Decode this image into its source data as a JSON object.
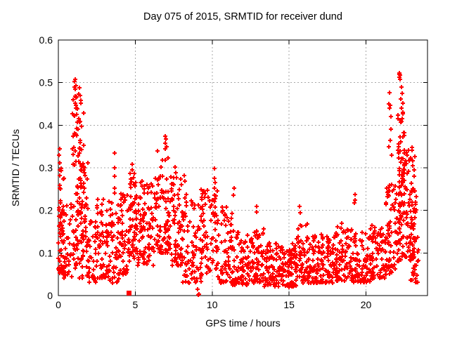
{
  "chart_data": {
    "type": "scatter",
    "title": "Day 075 of 2015, SRMTID for receiver dund",
    "xlabel": "GPS time / hours",
    "ylabel": "SRMTID / TECUs",
    "xlim": [
      0,
      24
    ],
    "ylim": [
      0,
      0.6
    ],
    "xticks": [
      {
        "v": 0,
        "label": "0"
      },
      {
        "v": 5,
        "label": "5"
      },
      {
        "v": 10,
        "label": "10"
      },
      {
        "v": 15,
        "label": "15"
      },
      {
        "v": 20,
        "label": "20"
      }
    ],
    "yticks": [
      {
        "v": 0.0,
        "label": "0"
      },
      {
        "v": 0.1,
        "label": "0.1"
      },
      {
        "v": 0.2,
        "label": "0.2"
      },
      {
        "v": 0.3,
        "label": "0.3"
      },
      {
        "v": 0.4,
        "label": "0.4"
      },
      {
        "v": 0.5,
        "label": "0.5"
      },
      {
        "v": 0.6,
        "label": "0.6"
      }
    ],
    "grid": true,
    "legend": "none",
    "marker": "+",
    "marker_color": "#ff0000",
    "marker_size_px": 7,
    "grid_color": "#a8a8a8",
    "border_color": "#000000",
    "background": "#ffffff",
    "seed": 75,
    "clusters": [
      [
        0.0,
        0.35,
        0.05,
        0.3,
        55,
        1.5
      ],
      [
        0.3,
        0.92,
        0.04,
        0.22,
        40,
        1.3
      ],
      [
        0.92,
        1.28,
        0.26,
        0.47,
        24,
        1.0
      ],
      [
        0.92,
        1.3,
        0.05,
        0.26,
        32,
        1.2
      ],
      [
        1.3,
        1.75,
        0.25,
        0.44,
        22,
        1.2
      ],
      [
        1.3,
        1.95,
        0.04,
        0.32,
        60,
        1.2
      ],
      [
        1.95,
        2.45,
        0.03,
        0.18,
        35,
        1.3
      ],
      [
        2.45,
        3.35,
        0.04,
        0.23,
        70,
        1.4
      ],
      [
        3.35,
        3.95,
        0.03,
        0.22,
        45,
        1.4
      ],
      [
        3.95,
        4.6,
        0.05,
        0.25,
        55,
        1.4
      ],
      [
        4.6,
        5.1,
        0.08,
        0.29,
        55,
        1.3
      ],
      [
        5.1,
        6.3,
        0.07,
        0.27,
        90,
        1.5
      ],
      [
        6.3,
        7.35,
        0.1,
        0.34,
        90,
        1.3
      ],
      [
        7.35,
        8.1,
        0.07,
        0.28,
        65,
        1.5
      ],
      [
        8.1,
        9.3,
        0.03,
        0.26,
        80,
        1.5
      ],
      [
        9.3,
        10.35,
        0.05,
        0.25,
        75,
        1.4
      ],
      [
        10.35,
        11.3,
        0.03,
        0.21,
        65,
        1.5
      ],
      [
        11.3,
        12.6,
        0.025,
        0.155,
        90,
        1.4
      ],
      [
        12.6,
        13.35,
        0.03,
        0.16,
        60,
        1.5
      ],
      [
        13.35,
        15.5,
        0.02,
        0.125,
        150,
        1.3
      ],
      [
        15.5,
        16.3,
        0.03,
        0.17,
        60,
        1.6
      ],
      [
        16.3,
        18.0,
        0.03,
        0.145,
        120,
        1.4
      ],
      [
        18.0,
        19.15,
        0.035,
        0.17,
        90,
        1.5
      ],
      [
        19.15,
        20.3,
        0.03,
        0.15,
        80,
        1.4
      ],
      [
        20.3,
        21.3,
        0.04,
        0.165,
        75,
        1.4
      ],
      [
        21.3,
        22.05,
        0.05,
        0.27,
        70,
        1.3
      ],
      [
        22.05,
        22.55,
        0.12,
        0.46,
        55,
        1.1
      ],
      [
        22.1,
        23.2,
        0.08,
        0.35,
        110,
        1.3
      ],
      [
        22.9,
        23.35,
        0.03,
        0.2,
        30,
        1.2
      ],
      [
        23.2,
        23.45,
        0.08,
        0.25,
        12,
        1.2
      ]
    ],
    "highlight_points": [
      [
        0.07,
        0.345
      ],
      [
        0.05,
        0.33
      ],
      [
        0.1,
        0.312
      ],
      [
        1.05,
        0.503
      ],
      [
        1.09,
        0.508
      ],
      [
        1.07,
        0.49
      ],
      [
        1.12,
        0.493
      ],
      [
        1.1,
        0.484
      ],
      [
        1.37,
        0.488
      ],
      [
        1.33,
        0.473
      ],
      [
        1.42,
        0.47
      ],
      [
        1.45,
        0.458
      ],
      [
        1.47,
        0.451
      ],
      [
        1.13,
        0.447
      ],
      [
        1.1,
        0.452
      ],
      [
        1.2,
        0.425
      ],
      [
        1.32,
        0.415
      ],
      [
        1.42,
        0.408
      ],
      [
        1.05,
        0.38
      ],
      [
        0.98,
        0.375
      ],
      [
        1.5,
        0.398
      ],
      [
        3.65,
        0.335
      ],
      [
        3.64,
        0.3
      ],
      [
        3.66,
        0.28
      ],
      [
        3.65,
        0.253
      ],
      [
        3.67,
        0.24
      ],
      [
        4.78,
        0.308
      ],
      [
        4.82,
        0.295
      ],
      [
        6.95,
        0.375
      ],
      [
        6.99,
        0.367
      ],
      [
        6.93,
        0.358
      ],
      [
        7.03,
        0.35
      ],
      [
        6.97,
        0.344
      ],
      [
        6.78,
        0.318
      ],
      [
        7.6,
        0.302
      ],
      [
        7.63,
        0.288
      ],
      [
        8.2,
        0.282
      ],
      [
        8.23,
        0.268
      ],
      [
        10.15,
        0.298
      ],
      [
        10.13,
        0.276
      ],
      [
        10.18,
        0.265
      ],
      [
        10.16,
        0.252
      ],
      [
        11.42,
        0.252
      ],
      [
        11.4,
        0.235
      ],
      [
        12.88,
        0.21
      ],
      [
        12.9,
        0.196
      ],
      [
        15.68,
        0.21
      ],
      [
        15.71,
        0.195
      ],
      [
        19.28,
        0.238
      ],
      [
        19.3,
        0.225
      ],
      [
        19.26,
        0.218
      ],
      [
        21.55,
        0.476
      ],
      [
        21.5,
        0.45
      ],
      [
        21.57,
        0.447
      ],
      [
        21.53,
        0.44
      ],
      [
        21.6,
        0.42
      ],
      [
        21.62,
        0.39
      ],
      [
        21.56,
        0.365
      ],
      [
        21.5,
        0.35
      ],
      [
        21.65,
        0.33
      ],
      [
        22.15,
        0.522
      ],
      [
        22.19,
        0.52
      ],
      [
        22.23,
        0.517
      ],
      [
        22.17,
        0.512
      ],
      [
        22.21,
        0.507
      ],
      [
        22.3,
        0.49
      ],
      [
        22.35,
        0.475
      ],
      [
        22.28,
        0.462
      ],
      [
        22.38,
        0.452
      ],
      [
        22.32,
        0.44
      ],
      [
        22.4,
        0.43
      ],
      [
        22.35,
        0.415
      ],
      [
        9.05,
        0.015
      ]
    ],
    "zero_points": [
      [
        9.1,
        0.002
      ],
      [
        9.16,
        0.004
      ]
    ],
    "square_point": [
      4.55,
      0.006
    ]
  }
}
